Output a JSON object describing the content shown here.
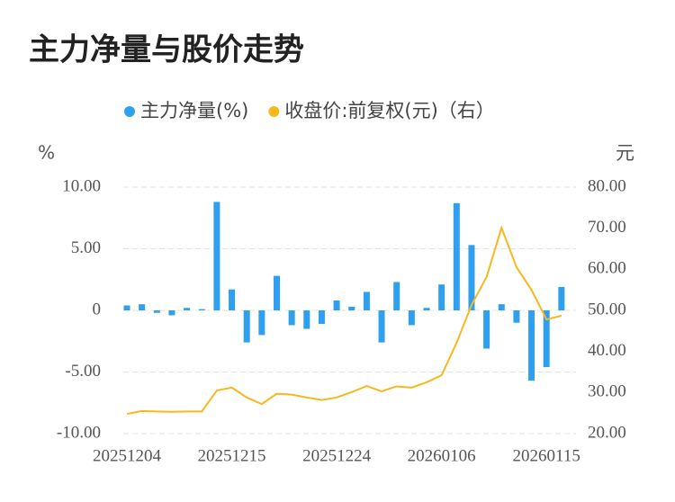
{
  "chart_data": {
    "type": "bar-line",
    "title": "主力净量与股价走势",
    "y_label": "%",
    "y2_label": "元",
    "categories": [
      "20251204",
      null,
      null,
      null,
      null,
      null,
      null,
      "20251215",
      null,
      null,
      null,
      null,
      null,
      null,
      "20251224",
      null,
      null,
      null,
      null,
      null,
      null,
      "20260106",
      null,
      null,
      null,
      null,
      null,
      null,
      "20260115",
      null
    ],
    "series": [
      {
        "name": "主力净量(%)",
        "type": "bar",
        "color": "#2f9ff0",
        "values": [
          0.4,
          0.5,
          -0.2,
          -0.4,
          0.2,
          0.1,
          8.8,
          1.7,
          -2.6,
          -2.0,
          2.8,
          -1.2,
          -1.5,
          -1.1,
          0.8,
          0.3,
          1.5,
          -2.6,
          2.3,
          -1.2,
          0.2,
          2.1,
          8.7,
          5.3,
          -3.1,
          0.5,
          -1.0,
          -5.7,
          -4.6,
          1.9
        ]
      },
      {
        "name": "收盘价:前复权(元)（右）",
        "type": "line",
        "axis": "y2",
        "color": "#f6b81e",
        "values": [
          24.8,
          25.5,
          25.4,
          25.3,
          25.4,
          25.4,
          30.5,
          31.2,
          28.8,
          27.2,
          29.7,
          29.5,
          28.8,
          28.2,
          28.8,
          30.1,
          31.6,
          30.3,
          31.5,
          31.2,
          32.5,
          34.2,
          42.1,
          51.3,
          58.1,
          70.1,
          60.5,
          55.0,
          47.8,
          48.7
        ]
      }
    ],
    "ylim": [
      -10,
      10
    ],
    "yticks": [
      {
        "value": -10,
        "label": "-10.00"
      },
      {
        "value": -5,
        "label": "-5.00"
      },
      0,
      {
        "value": 5,
        "label": "5.00"
      },
      {
        "value": 10,
        "label": "10.00"
      }
    ],
    "y2lim": [
      20,
      80
    ],
    "y2ticks": [
      {
        "value": 20,
        "label": "20.00"
      },
      {
        "value": 30,
        "label": "30.00"
      },
      {
        "value": 40,
        "label": "40.00"
      },
      {
        "value": 50,
        "label": "50.00"
      },
      {
        "value": 60,
        "label": "60.00"
      },
      {
        "value": 70,
        "label": "70.00"
      },
      {
        "value": 80,
        "label": "80.00"
      }
    ],
    "grid": true,
    "legend": "top"
  }
}
